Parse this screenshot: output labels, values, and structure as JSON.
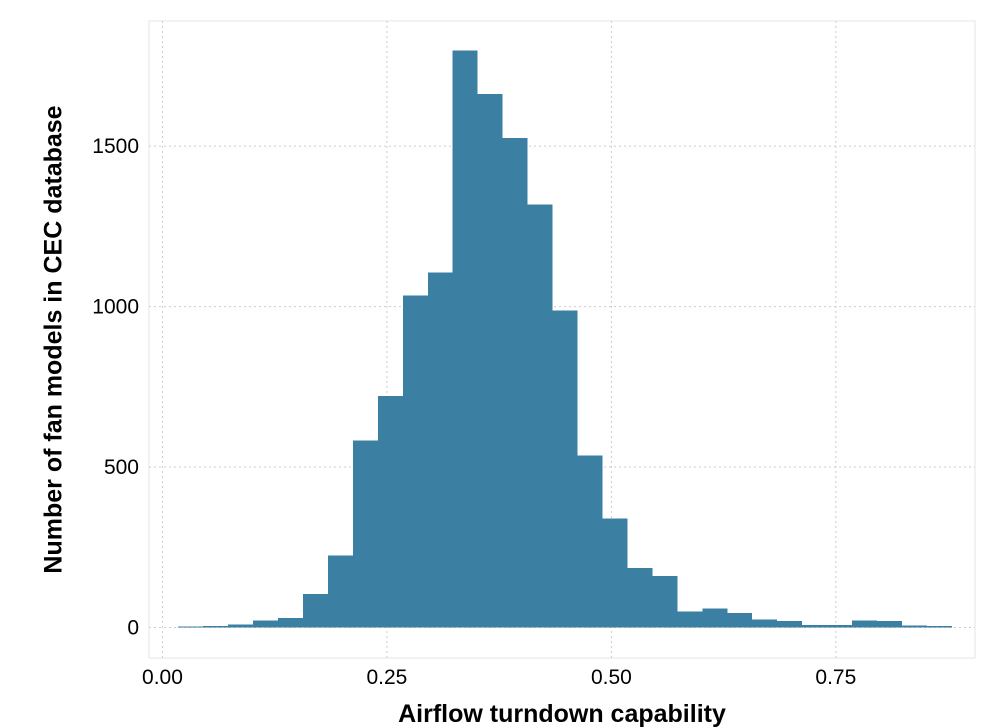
{
  "chart_data": {
    "type": "bar",
    "title": "",
    "xlabel": "Airflow turndown capability",
    "ylabel": "Number of fan models in CEC database",
    "bin_width": 0.0278,
    "bins": [
      {
        "x0": 0.0175,
        "x1": 0.0453,
        "count": 3
      },
      {
        "x0": 0.0453,
        "x1": 0.0731,
        "count": 5
      },
      {
        "x0": 0.0731,
        "x1": 0.1009,
        "count": 10
      },
      {
        "x0": 0.1009,
        "x1": 0.1287,
        "count": 22
      },
      {
        "x0": 0.1287,
        "x1": 0.1565,
        "count": 30
      },
      {
        "x0": 0.1565,
        "x1": 0.1843,
        "count": 105
      },
      {
        "x0": 0.1843,
        "x1": 0.2121,
        "count": 225
      },
      {
        "x0": 0.2121,
        "x1": 0.2399,
        "count": 582
      },
      {
        "x0": 0.2399,
        "x1": 0.2677,
        "count": 722
      },
      {
        "x0": 0.2677,
        "x1": 0.2955,
        "count": 1035
      },
      {
        "x0": 0.2955,
        "x1": 0.3233,
        "count": 1107
      },
      {
        "x0": 0.3233,
        "x1": 0.3511,
        "count": 1798
      },
      {
        "x0": 0.3511,
        "x1": 0.3789,
        "count": 1662
      },
      {
        "x0": 0.3789,
        "x1": 0.4067,
        "count": 1526
      },
      {
        "x0": 0.4067,
        "x1": 0.4345,
        "count": 1318
      },
      {
        "x0": 0.4345,
        "x1": 0.4623,
        "count": 988
      },
      {
        "x0": 0.4623,
        "x1": 0.4901,
        "count": 536
      },
      {
        "x0": 0.4901,
        "x1": 0.5179,
        "count": 340
      },
      {
        "x0": 0.5179,
        "x1": 0.5457,
        "count": 185
      },
      {
        "x0": 0.5457,
        "x1": 0.5735,
        "count": 160
      },
      {
        "x0": 0.5735,
        "x1": 0.6013,
        "count": 50
      },
      {
        "x0": 0.6013,
        "x1": 0.6291,
        "count": 60
      },
      {
        "x0": 0.6291,
        "x1": 0.6569,
        "count": 45
      },
      {
        "x0": 0.6569,
        "x1": 0.6847,
        "count": 25
      },
      {
        "x0": 0.6847,
        "x1": 0.7125,
        "count": 20
      },
      {
        "x0": 0.7125,
        "x1": 0.7403,
        "count": 8
      },
      {
        "x0": 0.7403,
        "x1": 0.7681,
        "count": 8
      },
      {
        "x0": 0.7681,
        "x1": 0.7959,
        "count": 22
      },
      {
        "x0": 0.7959,
        "x1": 0.8237,
        "count": 20
      },
      {
        "x0": 0.8237,
        "x1": 0.8515,
        "count": 6
      },
      {
        "x0": 0.8515,
        "x1": 0.8793,
        "count": 4
      }
    ],
    "xlim": [
      -0.015,
      0.905
    ],
    "ylim": [
      -95,
      1890
    ],
    "xticks": [
      0.0,
      0.25,
      0.5,
      0.75
    ],
    "xtick_labels": [
      "0.00",
      "0.25",
      "0.50",
      "0.75"
    ],
    "yticks": [
      0,
      500,
      1000,
      1500
    ],
    "ytick_labels": [
      "0",
      "500",
      "1000",
      "1500"
    ],
    "grid": true,
    "bar_color": "#3b7fa2",
    "grid_color": "#cccccc",
    "panel_border_color": "#e6e6e6"
  }
}
